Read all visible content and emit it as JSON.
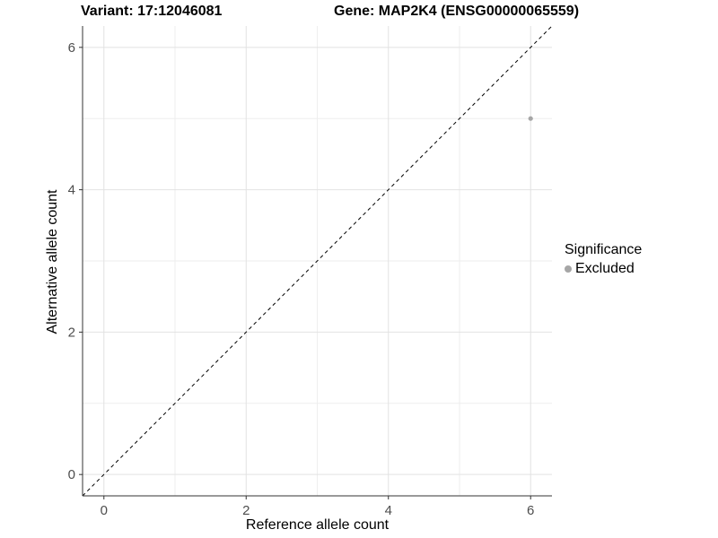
{
  "header": {
    "variant_title": "Variant: 17:12046081",
    "gene_title": "Gene: MAP2K4 (ENSG00000065559)"
  },
  "chart_data": {
    "type": "scatter",
    "xlabel": "Reference allele count",
    "ylabel": "Alternative allele count",
    "xlim": [
      -0.3,
      6.3
    ],
    "ylim": [
      -0.3,
      6.3
    ],
    "xticks": [
      0,
      2,
      4,
      6
    ],
    "yticks": [
      0,
      2,
      4,
      6
    ],
    "xminor": [
      1,
      3,
      5
    ],
    "yminor": [
      1,
      3,
      5
    ],
    "grid": "major+minor",
    "reference_line": {
      "type": "abline",
      "slope": 1,
      "intercept": 0,
      "style": "dashed",
      "color": "#000000"
    },
    "series": [
      {
        "name": "Excluded",
        "color": "#a6a6a6",
        "points": [
          [
            6,
            5
          ]
        ]
      }
    ],
    "legend": {
      "title": "Significance",
      "position": "right",
      "entries": [
        {
          "label": "Excluded",
          "color": "#a6a6a6"
        }
      ]
    }
  },
  "style": {
    "background_color": "#ffffff",
    "grid_major_color": "#e2e2e2",
    "grid_minor_color": "#eeeeee",
    "axis_line_color": "#333333",
    "tick_label_color": "#4d4d4d",
    "tick_label_size": 15,
    "point_radius": 2.6,
    "legend_dot_color": "#a6a6a6"
  }
}
